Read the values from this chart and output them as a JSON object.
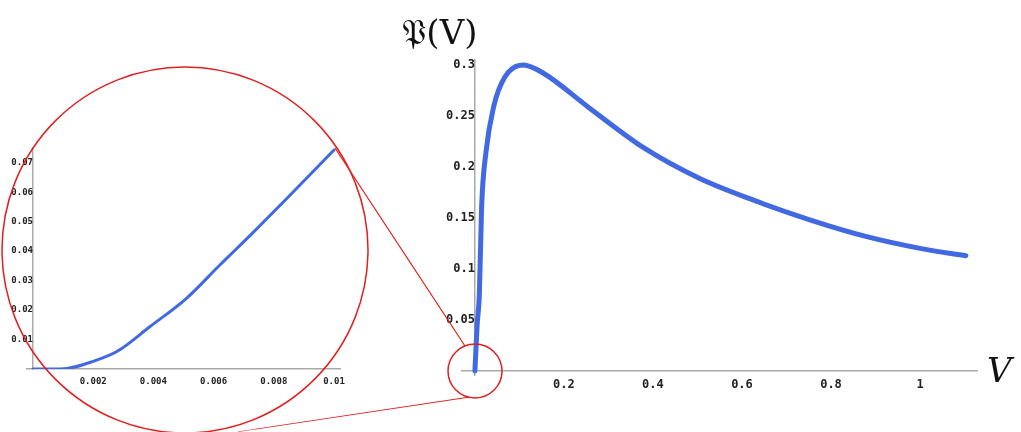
{
  "chart_data": [
    {
      "type": "line",
      "xlabel": "V",
      "ylabel": "𝔓(V)",
      "marker": "none",
      "xlim": [
        -0.029,
        1.128
      ],
      "ylim": [
        -0.004,
        0.305
      ],
      "xticks": [
        0.2,
        0.4,
        0.6,
        0.8,
        1
      ],
      "yticks": [
        0.05,
        0.1,
        0.15,
        0.2,
        0.25,
        0.3
      ],
      "series": [
        {
          "color": "#4169e1",
          "x": [
            0,
            0.005,
            0.01,
            0.015,
            0.025,
            0.042,
            0.067,
            0.109,
            0.154,
            0.254,
            0.379,
            0.504,
            0.629,
            0.754,
            0.878,
            1.003,
            1.103
          ],
          "values": [
            0,
            0.045,
            0.075,
            0.16,
            0.215,
            0.259,
            0.288,
            0.3,
            0.292,
            0.259,
            0.219,
            0.189,
            0.167,
            0.148,
            0.132,
            0.12,
            0.113
          ]
        }
      ]
    },
    {
      "type": "line",
      "marker": "none",
      "xlim": [
        -0.0002,
        0.0102
      ],
      "ylim": [
        0,
        0.075
      ],
      "xticks": [
        0.002,
        0.004,
        0.006,
        0.008,
        0.01
      ],
      "yticks": [
        0.01,
        0.02,
        0.03,
        0.04,
        0.05,
        0.06,
        0.07
      ],
      "series": [
        {
          "color": "#4169e1",
          "x": [
            0,
            0.00056,
            0.00113,
            0.002,
            0.0028,
            0.0039,
            0.0051,
            0.0062,
            0.0073,
            0.0084,
            0.01
          ],
          "values": [
            0,
            0,
            0.0002,
            0.0026,
            0.006,
            0.0145,
            0.024,
            0.0352,
            0.0462,
            0.0575,
            0.0743
          ]
        }
      ]
    }
  ]
}
